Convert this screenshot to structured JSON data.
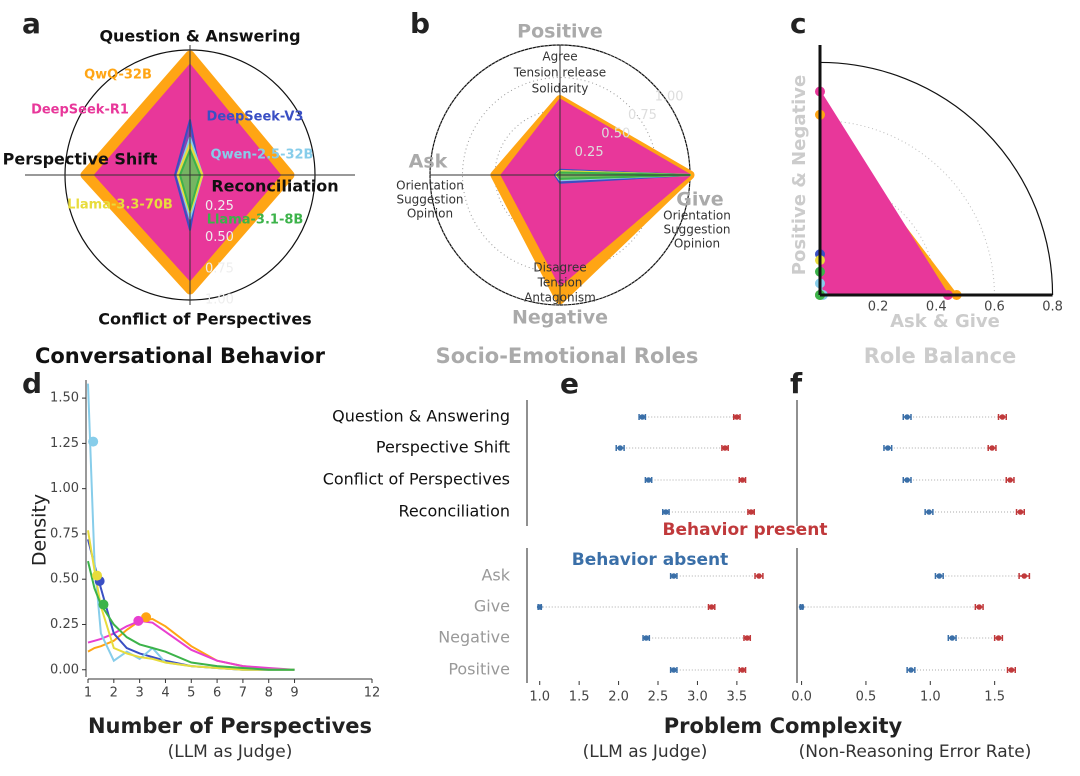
{
  "chart_data": [
    {
      "type": "radar",
      "label": "a",
      "title": "Conversational Behavior",
      "categories": [
        "Question & Answering",
        "Reconciliation",
        "Conflict of Perspectives",
        "Perspective Shift"
      ],
      "rlim": [
        0,
        1
      ],
      "rticks": [
        0.25,
        {
          "value": 0.5,
          "label": "0.50"
        },
        0.75,
        {
          "value": 1,
          "label": "1.00"
        }
      ],
      "grid": false,
      "series": [
        {
          "name": "QwQ-32B",
          "color": "#ffa514",
          "values": [
            0.96,
            0.8,
            0.92,
            0.84
          ]
        },
        {
          "name": "DeepSeek-R1",
          "color": "#e8379a",
          "values": [
            0.88,
            0.72,
            0.84,
            0.76
          ]
        },
        {
          "name": "DeepSeek-V3",
          "color": "#3a4fc4",
          "values": [
            0.44,
            0.08,
            0.44,
            0.12
          ]
        },
        {
          "name": "Qwen-2.5-32B",
          "color": "#87cdea",
          "values": [
            0.3,
            0.1,
            0.35,
            0.1
          ]
        },
        {
          "name": "Llama-3.3-70B",
          "color": "#e8dc3c",
          "values": [
            0.25,
            0.1,
            0.3,
            0.1
          ]
        },
        {
          "name": "Llama-3.1-8B",
          "color": "#3cb34a",
          "values": [
            0.2,
            0.08,
            0.28,
            0.08
          ]
        }
      ]
    },
    {
      "type": "radar",
      "label": "b",
      "title": "Socio-Emotional Roles",
      "categories": [
        "Positive",
        "Give",
        "Negative",
        "Ask"
      ],
      "descriptions": [
        [
          "Agree",
          "Tension release",
          "Solidarity"
        ],
        [
          "Orientation",
          "Suggestion",
          "Opinion"
        ],
        [
          "Disagree",
          "Tension",
          "Antagonism"
        ],
        [
          "Orientation",
          "Suggestion",
          "Opinion"
        ]
      ],
      "rlim": [
        0,
        1
      ],
      "rticks": [
        0.25,
        {
          "value": 0.5,
          "label": "0.50"
        },
        0.75,
        {
          "value": 1,
          "label": "1.00"
        }
      ],
      "grid": true,
      "series": [
        {
          "color": "#ffa514",
          "values": [
            0.58,
            1.0,
            0.96,
            0.5
          ]
        },
        {
          "color": "#e8379a",
          "values": [
            0.58,
            1.0,
            0.85,
            0.45
          ]
        },
        {
          "color": "#3a4fc4",
          "values": [
            0.04,
            1.0,
            0.06,
            0.04
          ]
        },
        {
          "color": "#87cdea",
          "values": [
            0.03,
            1.0,
            0.04,
            0.03
          ]
        },
        {
          "color": "#e8dc3c",
          "values": [
            0.03,
            1.0,
            0.03,
            0.03
          ]
        },
        {
          "color": "#3cb34a",
          "values": [
            0.02,
            1.0,
            0.03,
            0.02
          ]
        }
      ]
    },
    {
      "type": "polar",
      "label": "c",
      "title": "Role Balance",
      "xlabel": "Ask & Give",
      "ylabel": "Positive & Negative",
      "lim": [
        0,
        0.86
      ],
      "ticks": [
        0.2,
        0.4,
        0.6,
        0.8
      ],
      "series": [
        {
          "color": "#ffa514",
          "values": [
            0.62,
            0.47
          ]
        },
        {
          "color": "#e8379a",
          "values": [
            0.7,
            0.44
          ]
        },
        {
          "color": "#3a4fc4",
          "values": [
            0.14,
            0.0
          ]
        },
        {
          "color": "#87cdea",
          "values": [
            0.04,
            0.01
          ]
        },
        {
          "color": "#e8dc3c",
          "values": [
            0.12,
            0.0
          ]
        },
        {
          "color": "#3cb34a",
          "values": [
            0.08,
            0.0
          ]
        }
      ]
    },
    {
      "type": "line",
      "label": "d",
      "xlabel": "Number of Perspectives",
      "xsublabel": "(LLM as Judge)",
      "ylabel": "Density",
      "x": [
        1,
        1.25,
        1.5,
        2,
        2.5,
        3,
        3.5,
        4,
        5,
        6,
        7,
        8,
        9
      ],
      "xlim": [
        1,
        12
      ],
      "xticks": [
        1,
        2,
        3,
        4,
        5,
        6,
        7,
        8,
        9,
        12
      ],
      "ylim": [
        -0.04,
        1.6
      ],
      "yticks": [
        {
          "value": 0,
          "label": "0.00"
        },
        0.25,
        {
          "value": 0.5,
          "label": "0.50"
        },
        0.75,
        {
          "value": 1,
          "label": "1.00"
        },
        1.25,
        {
          "value": 1.5,
          "label": "1.50"
        }
      ],
      "series": [
        {
          "color": "#ffa514",
          "values": [
            0.1,
            0.12,
            0.13,
            0.16,
            0.22,
            0.27,
            0.28,
            0.24,
            0.13,
            0.05,
            0.02,
            0.005,
            0
          ],
          "marker_x": 3.25,
          "marker_y": 0.29
        },
        {
          "color": "#e83fd0",
          "values": [
            0.15,
            0.16,
            0.17,
            0.2,
            0.24,
            0.27,
            0.26,
            0.21,
            0.11,
            0.05,
            0.02,
            0.01,
            0
          ],
          "marker_x": 2.95,
          "marker_y": 0.27
        },
        {
          "color": "#3a4fc4",
          "values": [
            0.72,
            0.58,
            0.45,
            0.2,
            0.12,
            0.09,
            0.07,
            0.05,
            0.02,
            0.01,
            0,
            0,
            0
          ],
          "marker_x": 1.45,
          "marker_y": 0.49
        },
        {
          "color": "#87cdea",
          "values": [
            1.58,
            0.6,
            0.2,
            0.05,
            0.1,
            0.06,
            0.12,
            0.04,
            0.02,
            0.01,
            0,
            0,
            0
          ],
          "marker_x": 1.2,
          "marker_y": 1.26
        },
        {
          "color": "#e8dc3c",
          "values": [
            0.77,
            0.55,
            0.35,
            0.12,
            0.09,
            0.07,
            0.06,
            0.04,
            0.02,
            0.01,
            0,
            0,
            0
          ],
          "marker_x": 1.35,
          "marker_y": 0.52
        },
        {
          "color": "#3cb34a",
          "values": [
            0.6,
            0.45,
            0.36,
            0.25,
            0.18,
            0.14,
            0.12,
            0.1,
            0.04,
            0.02,
            0.01,
            0,
            0
          ],
          "marker_x": 1.6,
          "marker_y": 0.36
        }
      ]
    },
    {
      "type": "dumbbell",
      "label": "e",
      "xlabel": "Problem Complexity",
      "xsublabel": "(LLM as Judge)",
      "categories": [
        "Question & Answering",
        "Perspective Shift",
        "Conflict of Perspectives",
        "Reconciliation",
        "Ask",
        "Give",
        "Negative",
        "Positive"
      ],
      "category_colors": [
        "#111111",
        "#111111",
        "#111111",
        "#111111",
        "#999999",
        "#999999",
        "#999999",
        "#999999"
      ],
      "xlim": [
        0.75,
        3.92
      ],
      "xticks": [
        {
          "value": 1,
          "label": "1.0"
        },
        1.5,
        {
          "value": 2,
          "label": "2.0"
        },
        2.5,
        {
          "value": 3,
          "label": "3.0"
        },
        3.5
      ],
      "series": [
        {
          "name": "Behavior absent",
          "color": "#3a6fa8",
          "values": [
            2.3,
            2.02,
            2.38,
            2.6,
            2.7,
            1.0,
            2.35,
            2.7
          ],
          "errors": [
            0.04,
            0.05,
            0.04,
            0.04,
            0.04,
            0.02,
            0.04,
            0.04
          ]
        },
        {
          "name": "Behavior present",
          "color": "#c0393b",
          "values": [
            3.5,
            3.35,
            3.57,
            3.68,
            3.78,
            3.18,
            3.63,
            3.57
          ],
          "errors": [
            0.04,
            0.04,
            0.04,
            0.04,
            0.05,
            0.04,
            0.04,
            0.04
          ]
        }
      ]
    },
    {
      "type": "dumbbell",
      "label": "f",
      "xsublabel": "(Non-Reasoning Error Rate)",
      "xlim": [
        -0.09,
        1.93
      ],
      "xticks": [
        {
          "value": 0,
          "label": "0.0"
        },
        0.5,
        {
          "value": 1,
          "label": "1.0"
        },
        1.5
      ],
      "series": [
        {
          "color": "#3a6fa8",
          "values": [
            0.82,
            0.67,
            0.82,
            0.99,
            1.07,
            0,
            1.17,
            0.85
          ],
          "errors": [
            0.03,
            0.03,
            0.03,
            0.03,
            0.03,
            0.01,
            0.03,
            0.03
          ]
        },
        {
          "color": "#c0393b",
          "values": [
            1.56,
            1.48,
            1.62,
            1.7,
            1.73,
            1.38,
            1.53,
            1.63
          ],
          "errors": [
            0.03,
            0.03,
            0.03,
            0.03,
            0.04,
            0.03,
            0.03,
            0.03
          ]
        }
      ]
    }
  ]
}
